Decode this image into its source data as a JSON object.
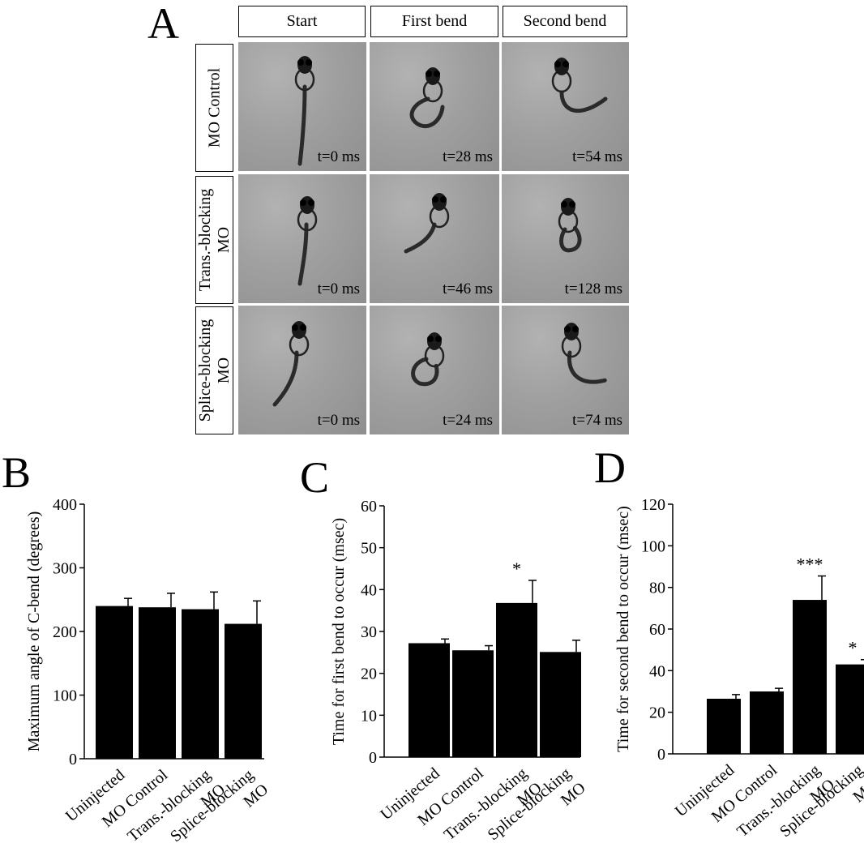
{
  "panel_a": {
    "letter": "A",
    "columns": [
      "Start",
      "First bend",
      "Second bend"
    ],
    "rows": [
      {
        "label_lines": [
          "MO Control"
        ],
        "times": [
          "t=0 ms",
          "t=28 ms",
          "t=54 ms"
        ]
      },
      {
        "label_lines": [
          "Trans.-blocking",
          "MO"
        ],
        "times": [
          "t=0 ms",
          "t=46 ms",
          "t=128 ms"
        ]
      },
      {
        "label_lines": [
          "Splice-blocking",
          "MO"
        ],
        "times": [
          "t=0 ms",
          "t=24 ms",
          "t=74 ms"
        ]
      }
    ]
  },
  "chart_data": [
    {
      "letter": "B",
      "type": "bar",
      "categories": [
        [
          "Uninjected"
        ],
        [
          "MO Control"
        ],
        [
          "Trans.-blocking",
          "MO"
        ],
        [
          "Splice-blocking",
          "MO"
        ]
      ],
      "values": [
        240,
        238,
        235,
        212
      ],
      "errors": [
        12,
        22,
        27,
        36
      ],
      "annotations": [
        "",
        "",
        "",
        ""
      ],
      "ylabel": "Maximum angle of C-bend (degrees)",
      "ylim": [
        0,
        400
      ],
      "yticks": [
        0,
        100,
        200,
        300,
        400
      ],
      "bar_color": "#000000"
    },
    {
      "letter": "C",
      "type": "bar",
      "categories": [
        [
          "Uninjected"
        ],
        [
          "MO Control"
        ],
        [
          "Trans.-blocking",
          "MO"
        ],
        [
          "Splice-blocking",
          "MO"
        ]
      ],
      "values": [
        27.2,
        25.5,
        36.8,
        25.1
      ],
      "errors": [
        1.0,
        1.1,
        5.4,
        2.8
      ],
      "annotations": [
        "",
        "",
        "*",
        ""
      ],
      "ylabel": "Time for first bend to occur (msec)",
      "ylim": [
        0,
        60
      ],
      "yticks": [
        0,
        10,
        20,
        30,
        40,
        50,
        60
      ],
      "bar_color": "#000000"
    },
    {
      "letter": "D",
      "type": "bar",
      "categories": [
        [
          "Uninjected"
        ],
        [
          "MO Control"
        ],
        [
          "Trans.-blocking",
          "MO"
        ],
        [
          "Splice-blocking",
          "MO"
        ]
      ],
      "values": [
        26.5,
        30,
        74,
        43
      ],
      "errors": [
        2,
        1.5,
        11.5,
        2.3
      ],
      "annotations": [
        "",
        "",
        "***",
        "*"
      ],
      "ylabel": "Time for second bend to occur (msec)",
      "ylim": [
        0,
        120
      ],
      "yticks": [
        0,
        20,
        40,
        60,
        80,
        100,
        120
      ],
      "bar_color": "#000000"
    }
  ]
}
